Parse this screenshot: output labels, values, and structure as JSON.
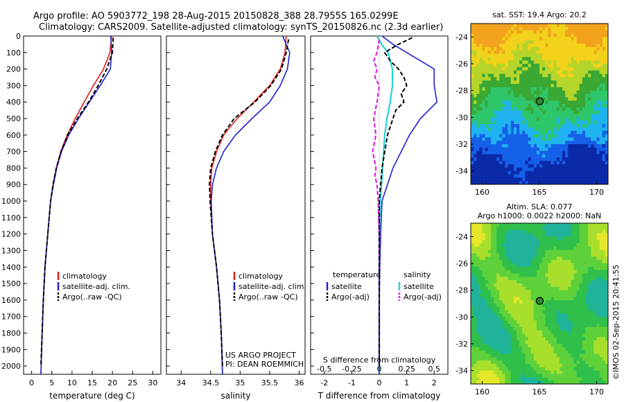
{
  "header": {
    "line1": "Argo profile: AO 5903772_198 28-Aug-2015 20150828_388 28.7955S 165.0299E",
    "line2": "Climatology: CARS2009. Satellite-adjusted climatology: synTS_20150826.nc (2.3d earlier)"
  },
  "colors": {
    "climatology": "#e31a1c",
    "satellite": "#1f1fd6",
    "argo": "#000000",
    "salinity_sat": "#22d3d3",
    "salinity_argo": "#e020e0"
  },
  "credits": {
    "project": "US ARGO PROJECT",
    "pi": "PI: DEAN ROEMMICH",
    "stamp": "©IMOS 02-Sep-2015 20:41:55"
  },
  "chart_data": [
    {
      "type": "line",
      "panel": "temperature",
      "xlabel": "temperature (deg C)",
      "ylabel": "",
      "xlim": [
        -2,
        32
      ],
      "ylim": [
        2050,
        0
      ],
      "x_ticks": [
        0,
        5,
        10,
        15,
        20,
        25,
        30
      ],
      "y_ticks": [
        0,
        100,
        200,
        300,
        400,
        500,
        600,
        700,
        800,
        900,
        1000,
        1100,
        1200,
        1300,
        1400,
        1500,
        1600,
        1700,
        1800,
        1900,
        2000
      ],
      "legend": [
        "climatology",
        "satellite-adj. clim.",
        "Argo(..raw -QC)"
      ],
      "series": [
        {
          "name": "climatology",
          "depth": [
            0,
            100,
            200,
            300,
            400,
            500,
            600,
            700,
            800,
            900,
            1000,
            1200,
            1400,
            1600,
            1800,
            2050
          ],
          "values": [
            19.8,
            19.4,
            17.8,
            15.3,
            13.0,
            10.8,
            8.8,
            7.2,
            6.1,
            5.3,
            4.7,
            4.0,
            3.3,
            2.9,
            2.6,
            2.3
          ]
        },
        {
          "name": "satellite-adj. clim.",
          "depth": [
            0,
            100,
            200,
            300,
            400,
            500,
            600,
            700,
            800,
            900,
            1000,
            1200,
            1400,
            1600,
            1800,
            2050
          ],
          "values": [
            19.6,
            19.8,
            19.5,
            17.0,
            14.3,
            11.6,
            9.2,
            7.4,
            6.2,
            5.4,
            4.7,
            4.0,
            3.3,
            2.9,
            2.6,
            2.3
          ]
        },
        {
          "name": "Argo(..raw -QC)",
          "depth": [
            10,
            100,
            200,
            300,
            400,
            500,
            600,
            700,
            800,
            900,
            1000,
            1200,
            1400,
            1600,
            1800,
            2000
          ],
          "values": [
            20.2,
            20.0,
            18.6,
            16.5,
            14.1,
            11.3,
            8.9,
            7.3,
            6.1,
            5.3,
            4.7,
            4.0,
            3.3,
            2.9,
            2.6,
            2.3
          ]
        }
      ]
    },
    {
      "type": "line",
      "panel": "salinity",
      "xlabel": "salinity",
      "ylabel": "",
      "xlim": [
        33.75,
        36.1
      ],
      "ylim": [
        2050,
        0
      ],
      "x_ticks": [
        34,
        34.5,
        35,
        35.5,
        36
      ],
      "legend": [
        "climatology",
        "satellite-adj. clim.",
        "Argo(..raw -QC)"
      ],
      "series": [
        {
          "name": "climatology",
          "depth": [
            0,
            100,
            200,
            300,
            400,
            500,
            600,
            700,
            800,
            900,
            1000,
            1200,
            1400,
            1600,
            1800,
            2050
          ],
          "values": [
            35.78,
            35.76,
            35.68,
            35.5,
            35.23,
            34.95,
            34.72,
            34.6,
            34.52,
            34.5,
            34.5,
            34.53,
            34.6,
            34.65,
            34.68,
            34.7
          ]
        },
        {
          "name": "satellite-adj. clim.",
          "depth": [
            0,
            100,
            200,
            300,
            400,
            500,
            600,
            700,
            800,
            900,
            1000,
            1200,
            1400,
            1600,
            1800,
            2050
          ],
          "values": [
            35.72,
            35.84,
            35.8,
            35.68,
            35.5,
            35.2,
            34.92,
            34.72,
            34.6,
            34.53,
            34.51,
            34.53,
            34.6,
            34.65,
            34.68,
            34.7
          ]
        },
        {
          "name": "Argo(..raw -QC)",
          "depth": [
            20,
            100,
            200,
            300,
            400,
            500,
            600,
            700,
            800,
            900,
            1000,
            1200,
            1400,
            1600,
            1800,
            2000
          ],
          "values": [
            35.82,
            35.78,
            35.7,
            35.52,
            35.25,
            34.9,
            34.7,
            34.58,
            34.5,
            34.48,
            34.49,
            34.53,
            34.6,
            34.65,
            34.68,
            34.7
          ]
        }
      ]
    },
    {
      "type": "line",
      "panel": "difference",
      "xlabel": "T difference from climatology",
      "x2label": "S difference from climatology",
      "xlim": [
        -2.5,
        2.5
      ],
      "x2lim": [
        -0.625,
        0.625
      ],
      "ylim": [
        2050,
        0
      ],
      "x_ticks": [
        -2,
        -1,
        0,
        1,
        2
      ],
      "x2_ticks": [
        -0.5,
        -0.25,
        0,
        0.25,
        0.5
      ],
      "x2_tick_labels": [
        "-0.5",
        "-0.25",
        "0",
        "0.25",
        "0.5"
      ],
      "legend_headers": [
        "temperature",
        "salinity"
      ],
      "legend": [
        "satellite",
        "Argo(-adj)",
        "satellite",
        "Argo(-adj)"
      ],
      "series": [
        {
          "name": "satellite",
          "variable": "temperature",
          "depth": [
            0,
            50,
            100,
            150,
            200,
            300,
            400,
            500,
            600,
            700,
            800,
            900,
            1000,
            1200,
            1400,
            1600,
            1800,
            2050
          ],
          "values": [
            0.1,
            0.5,
            1.0,
            1.5,
            2.0,
            2.0,
            2.1,
            1.5,
            1.1,
            0.8,
            0.5,
            0.3,
            0.1,
            0.05,
            0.02,
            0.0,
            0.0,
            0.0
          ]
        },
        {
          "name": "Argo(-adj)",
          "variable": "temperature",
          "depth": [
            10,
            50,
            100,
            150,
            200,
            250,
            300,
            350,
            400,
            450,
            500,
            600,
            700,
            800,
            900,
            1000,
            1200,
            1400,
            1600,
            1800,
            2000
          ],
          "values": [
            1.2,
            0.7,
            0.2,
            0.4,
            0.7,
            0.9,
            1.0,
            0.8,
            0.9,
            0.6,
            0.5,
            0.3,
            0.2,
            0.1,
            0.05,
            0.0,
            0.0,
            0.0,
            0.0,
            0.0,
            0.0
          ]
        },
        {
          "name": "satellite",
          "variable": "salinity",
          "depth": [
            0,
            50,
            100,
            200,
            300,
            400,
            500,
            600,
            700,
            800,
            900,
            1000,
            1200,
            1400,
            1600,
            1800,
            2050
          ],
          "values": [
            -0.02,
            0.02,
            0.08,
            0.12,
            0.12,
            0.1,
            0.07,
            0.05,
            0.04,
            0.03,
            0.02,
            0.01,
            0.0,
            0.0,
            0.0,
            0.0,
            0.0
          ]
        },
        {
          "name": "Argo(-adj)",
          "variable": "salinity",
          "depth": [
            20,
            100,
            150,
            200,
            250,
            300,
            400,
            500,
            600,
            700,
            800,
            850,
            900,
            1000,
            1200,
            1400,
            1600,
            1800,
            2000
          ],
          "values": [
            0.0,
            -0.02,
            -0.05,
            -0.02,
            -0.04,
            0.0,
            -0.02,
            -0.05,
            -0.03,
            -0.06,
            -0.03,
            -0.04,
            -0.02,
            -0.01,
            0.0,
            0.0,
            0.0,
            0.0,
            0.0
          ]
        }
      ]
    },
    {
      "type": "heatmap",
      "panel": "sst-map",
      "title": "sat. SST: 19.4  Argo: 20.2",
      "xlim": [
        159,
        171
      ],
      "ylim": [
        -35,
        -23
      ],
      "x_ticks": [
        160,
        165,
        170
      ],
      "y_ticks": [
        -24,
        -26,
        -28,
        -30,
        -32,
        -34
      ],
      "marker": {
        "lon": 165.03,
        "lat": -28.8
      },
      "colors": [
        "#0b2aa8",
        "#1560e8",
        "#1fb3f0",
        "#2ec66a",
        "#3aa833",
        "#b6d52a",
        "#f2d21a",
        "#f2a21c"
      ]
    },
    {
      "type": "heatmap",
      "panel": "sla-map",
      "title": "Altim. SLA: 0.077",
      "subtitle": "Argo h1000: 0.0022 h2000: NaN",
      "xlim": [
        159,
        171
      ],
      "ylim": [
        -35,
        -23
      ],
      "x_ticks": [
        160,
        165,
        170
      ],
      "y_ticks": [
        -24,
        -26,
        -28,
        -30,
        -32,
        -34
      ],
      "marker": {
        "lon": 165.03,
        "lat": -28.8
      },
      "colors": [
        "#1fb39a",
        "#2fbf4a",
        "#5ed13a",
        "#a8df2c",
        "#e6e62a",
        "#f0c82a"
      ]
    }
  ]
}
